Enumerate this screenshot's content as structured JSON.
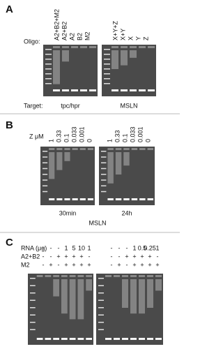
{
  "panels": {
    "A": {
      "label": "A",
      "oligo_label": "Oligo:",
      "lanes_left": [
        "A2+B2+M2",
        "A2+B2",
        "A2",
        "B2",
        "M2"
      ],
      "lanes_right": [
        "X+Y+Z",
        "X+Y",
        "X",
        "Y",
        "Z"
      ],
      "target_label": "Target:",
      "targets": [
        "tpc/hpr",
        "MSLN"
      ]
    },
    "B": {
      "label": "B",
      "conc_label": "Z μM",
      "lanes_left": [
        "1",
        "0.33",
        "0.1",
        "0.033",
        "0.001",
        "0"
      ],
      "lanes_right": [
        "1",
        "0.33",
        "0.1",
        "0.033",
        "0.001",
        "0"
      ],
      "times": [
        "30min",
        "24h"
      ],
      "target": "MSLN"
    },
    "C": {
      "label": "C",
      "row_labels": [
        "RNA (μg)",
        "A2+B2",
        "M2"
      ],
      "left": [
        [
          "-",
          "-",
          "-",
          "1",
          "5",
          "10",
          "1"
        ],
        [
          "-",
          "-",
          "+",
          "+",
          "+",
          "+",
          "-"
        ],
        [
          "-",
          "+",
          "-",
          "+",
          "+",
          "+",
          "+"
        ]
      ],
      "right": [
        [
          "-",
          "-",
          "-",
          "1",
          "0.5",
          "0.25",
          "1"
        ],
        [
          "-",
          "-",
          "+",
          "+",
          "+",
          "+",
          "-"
        ],
        [
          "-",
          "+",
          "-",
          "+",
          "+",
          "+",
          "+"
        ]
      ]
    }
  }
}
